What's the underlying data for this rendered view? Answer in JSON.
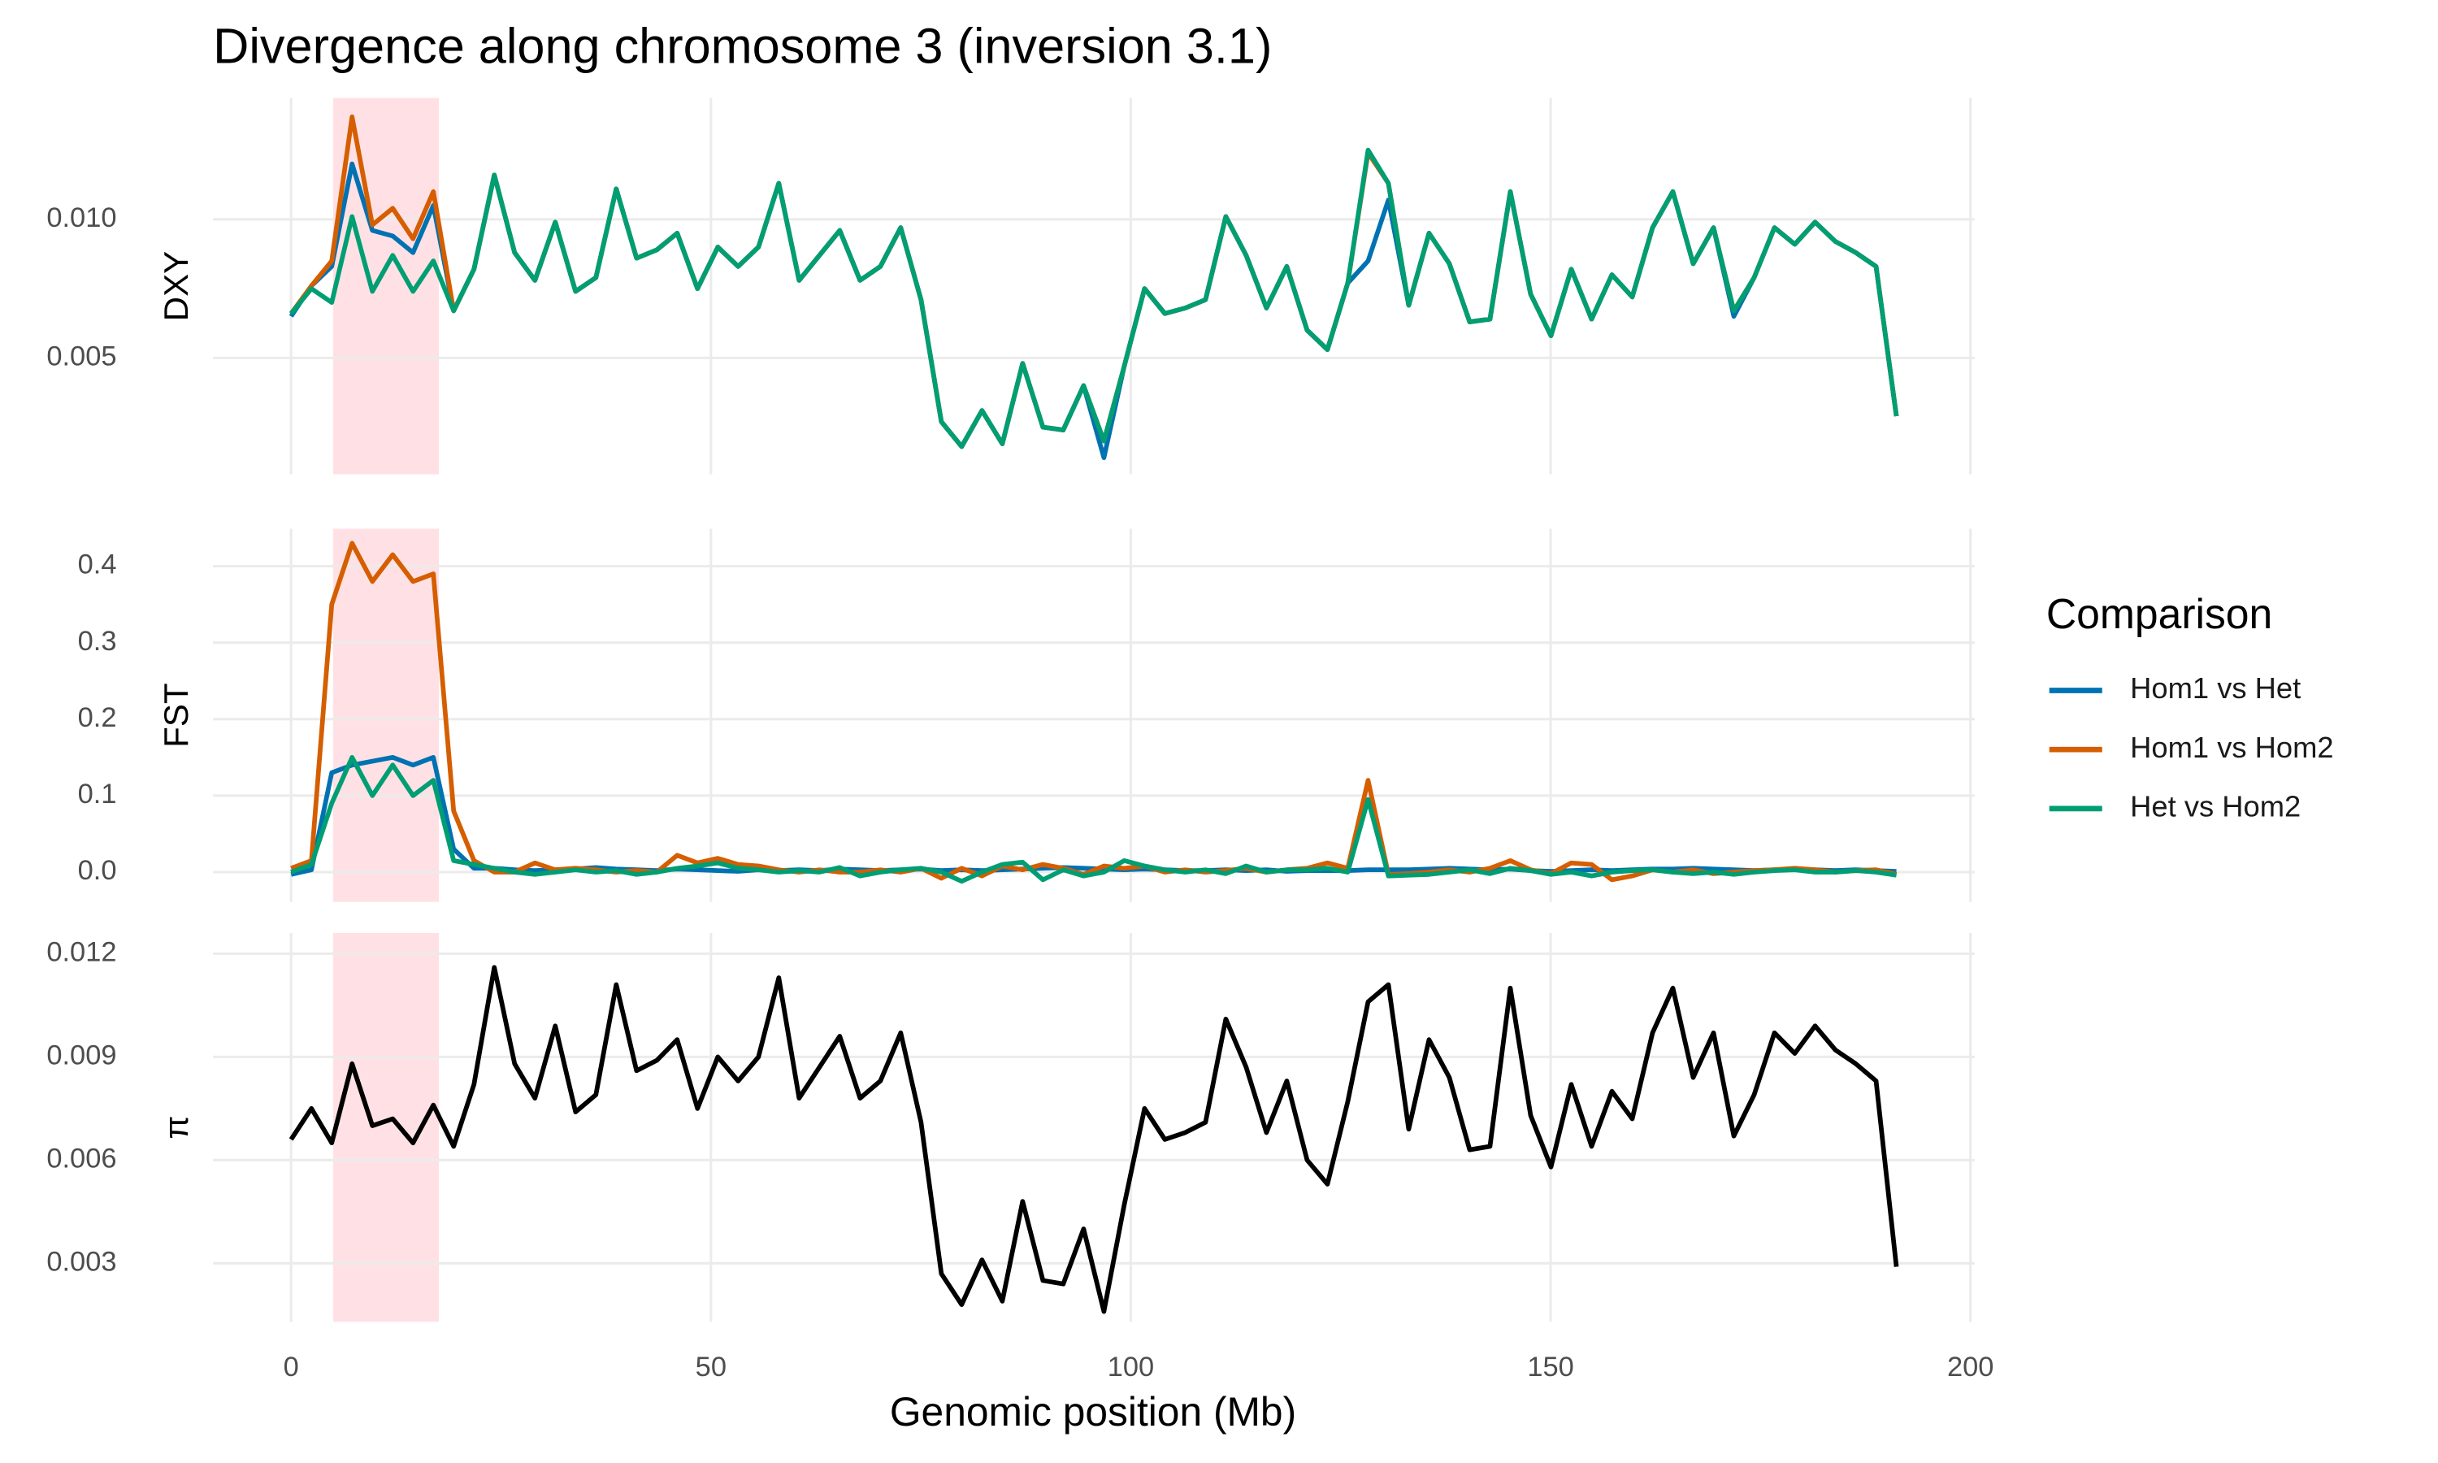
{
  "chart_data": {
    "type": "line",
    "title": "Divergence along chromosome 3 (inversion 3.1)",
    "xlabel": "Genomic position (Mb)",
    "legend_title": "Comparison",
    "legend_position": "right",
    "grid": true,
    "shade": {
      "xmin": 5,
      "xmax": 17.6,
      "color": "#ffe1e5"
    },
    "xlim": [
      -9.3,
      200.5
    ],
    "xticks": [
      0,
      50,
      100,
      150,
      200
    ],
    "x": [
      0,
      2.42,
      4.84,
      7.26,
      9.68,
      12.1,
      14.52,
      16.94,
      19.36,
      21.78,
      24.2,
      26.62,
      29.04,
      31.46,
      33.88,
      36.3,
      38.72,
      41.14,
      43.56,
      45.98,
      48.4,
      50.82,
      53.24,
      55.66,
      58.08,
      60.5,
      62.92,
      65.34,
      67.76,
      70.18,
      72.6,
      75.02,
      77.44,
      79.86,
      82.28,
      84.7,
      87.12,
      89.54,
      91.96,
      94.38,
      96.8,
      99.22,
      101.64,
      104.06,
      106.48,
      108.9,
      111.32,
      113.74,
      116.16,
      118.58,
      121,
      123.42,
      125.84,
      128.26,
      130.68,
      133.1,
      135.52,
      137.94,
      140.36,
      142.78,
      145.2,
      147.62,
      150.04,
      152.46,
      154.88,
      157.3,
      159.72,
      162.14,
      164.56,
      166.98,
      169.4,
      171.82,
      174.24,
      176.66,
      179.08,
      181.5,
      183.92,
      186.34,
      188.76,
      191.18
    ],
    "panels": [
      {
        "ylabel": "DXY",
        "ylim": [
          0.0008,
          0.01438
        ],
        "yticks": [
          0.005,
          {
            "value": 0.01,
            "label": "0.010"
          }
        ],
        "series": [
          {
            "name": "Hom1 vs Het",
            "color": "#0072B2",
            "values": [
              0.0065,
              0.0076,
              0.0083,
              0.012,
              0.0096,
              0.0094,
              0.0088,
              0.0105,
              0.0067,
              0.0082,
              0.0116,
              0.0088,
              0.0078,
              0.0099,
              0.0074,
              0.0079,
              0.0111,
              0.0086,
              0.0089,
              0.0095,
              0.0075,
              0.009,
              0.0083,
              0.009,
              0.0113,
              0.0078,
              0.0087,
              0.0096,
              0.0078,
              0.0083,
              0.0097,
              0.0071,
              0.0027,
              0.0018,
              0.0031,
              0.0019,
              0.0048,
              0.0025,
              0.0024,
              0.004,
              0.0014,
              0.0047,
              0.0075,
              0.0066,
              0.0068,
              0.0071,
              0.0101,
              0.0087,
              0.0068,
              0.0083,
              0.006,
              0.0053,
              0.0077,
              0.0085,
              0.0107,
              0.0069,
              0.0095,
              0.0084,
              0.0063,
              0.0064,
              0.011,
              0.0073,
              0.0058,
              0.0082,
              0.0064,
              0.008,
              0.0072,
              0.0097,
              0.011,
              0.0084,
              0.0097,
              0.0065,
              0.0079,
              0.0097,
              0.0091,
              0.0099,
              0.0092,
              0.0088,
              0.0083,
              0.0029
            ]
          },
          {
            "name": "Hom1 vs Hom2",
            "color": "#D55E00",
            "values": [
              0.0066,
              0.0076,
              0.0085,
              0.0137,
              0.0098,
              0.0104,
              0.0093,
              0.011,
              0.0067,
              0.0082,
              0.0116,
              0.0088,
              0.0078,
              0.0099,
              0.0074,
              0.0079,
              0.0111,
              0.0086,
              0.0089,
              0.0095,
              0.0075,
              0.009,
              0.0083,
              0.009,
              0.0113,
              0.0078,
              0.0087,
              0.0096,
              0.0078,
              0.0083,
              0.0097,
              0.0071,
              0.0027,
              0.0018,
              0.0031,
              0.0019,
              0.0048,
              0.0025,
              0.0024,
              0.004,
              0.002,
              0.0047,
              0.0075,
              0.0066,
              0.0068,
              0.0071,
              0.0101,
              0.0087,
              0.0068,
              0.0083,
              0.006,
              0.0053,
              0.0077,
              0.0124,
              0.0113,
              0.0069,
              0.0095,
              0.0084,
              0.0063,
              0.0064,
              0.011,
              0.0073,
              0.0058,
              0.0082,
              0.0064,
              0.008,
              0.0072,
              0.0097,
              0.011,
              0.0084,
              0.0097,
              0.0067,
              0.0079,
              0.0097,
              0.0091,
              0.0099,
              0.0092,
              0.0088,
              0.0083,
              0.0029
            ]
          },
          {
            "name": "Het vs Hom2",
            "color": "#009E73",
            "values": [
              0.0066,
              0.0075,
              0.007,
              0.0101,
              0.0074,
              0.0087,
              0.0074,
              0.0085,
              0.0067,
              0.0082,
              0.0116,
              0.0088,
              0.0078,
              0.0099,
              0.0074,
              0.0079,
              0.0111,
              0.0086,
              0.0089,
              0.0095,
              0.0075,
              0.009,
              0.0083,
              0.009,
              0.0113,
              0.0078,
              0.0087,
              0.0096,
              0.0078,
              0.0083,
              0.0097,
              0.0071,
              0.0027,
              0.0018,
              0.0031,
              0.0019,
              0.0048,
              0.0025,
              0.0024,
              0.004,
              0.002,
              0.0047,
              0.0075,
              0.0066,
              0.0068,
              0.0071,
              0.0101,
              0.0087,
              0.0068,
              0.0083,
              0.006,
              0.0053,
              0.0077,
              0.0125,
              0.0113,
              0.0069,
              0.0095,
              0.0084,
              0.0063,
              0.0064,
              0.011,
              0.0073,
              0.0058,
              0.0082,
              0.0064,
              0.008,
              0.0072,
              0.0097,
              0.011,
              0.0084,
              0.0097,
              0.0067,
              0.0079,
              0.0097,
              0.0091,
              0.0099,
              0.0092,
              0.0088,
              0.0083,
              0.0029
            ]
          }
        ]
      },
      {
        "ylabel": "FST",
        "ylim": [
          -0.039,
          0.449
        ],
        "yticks": [
          {
            "value": 0,
            "label": "0.0"
          },
          0.1,
          0.2,
          0.3,
          0.4
        ],
        "series": [
          {
            "name": "Hom1 vs Het",
            "color": "#0072B2",
            "values": [
              -0.003,
              0.003,
              0.13,
              0.14,
              0.145,
              0.15,
              0.14,
              0.15,
              0.03,
              0.005,
              0.005,
              0.003,
              0.002,
              0.003,
              0.004,
              0.006,
              0.004,
              0.003,
              0.002,
              0.004,
              0.003,
              0.002,
              0.001,
              0.003,
              0.002,
              0.003,
              0.002,
              0.004,
              0.003,
              0.002,
              0.003,
              0.004,
              0.002,
              0.003,
              0.002,
              0.003,
              0.004,
              0.005,
              0.006,
              0.005,
              0.004,
              0.003,
              0.004,
              0.003,
              0.002,
              0.002,
              0.003,
              0.002,
              0.003,
              0.001,
              0.002,
              0.002,
              0.002,
              0.003,
              0.003,
              0.003,
              0.004,
              0.005,
              0.004,
              0.003,
              0.004,
              0.002,
              0.001,
              0.002,
              0.003,
              0.002,
              0.003,
              0.004,
              0.004,
              0.005,
              0.004,
              0.003,
              0.002,
              0.003,
              0.004,
              0.003,
              0.002,
              0.003,
              0.002,
              0.001
            ]
          },
          {
            "name": "Hom1 vs Hom2",
            "color": "#D55E00",
            "values": [
              0.005,
              0.015,
              0.35,
              0.43,
              0.38,
              0.415,
              0.38,
              0.39,
              0.08,
              0.015,
              0.0,
              0.0,
              0.012,
              0.003,
              0.005,
              0.003,
              0.0,
              0.002,
              0.0,
              0.022,
              0.012,
              0.018,
              0.01,
              0.008,
              0.003,
              0.0,
              0.003,
              0.0,
              0.0,
              0.003,
              0.0,
              0.005,
              -0.008,
              0.005,
              -0.005,
              0.008,
              0.003,
              0.01,
              0.005,
              -0.003,
              0.008,
              0.005,
              0.008,
              0.0,
              0.003,
              0.0,
              0.002,
              0.005,
              0.0,
              0.003,
              0.005,
              0.012,
              0.005,
              0.12,
              -0.003,
              -0.002,
              0.0,
              0.003,
              0.0,
              0.005,
              0.015,
              0.003,
              -0.002,
              0.012,
              0.01,
              -0.01,
              -0.005,
              0.003,
              0.0,
              0.003,
              -0.002,
              0.0,
              0.002,
              0.003,
              0.005,
              0.003,
              0.0,
              0.002,
              0.003,
              -0.003
            ]
          },
          {
            "name": "Het vs Hom2",
            "color": "#009E73",
            "values": [
              0.0,
              0.01,
              0.09,
              0.15,
              0.1,
              0.14,
              0.1,
              0.12,
              0.015,
              0.01,
              0.005,
              0.0,
              -0.003,
              0.0,
              0.003,
              0.0,
              0.002,
              -0.003,
              0.0,
              0.005,
              0.008,
              0.012,
              0.005,
              0.003,
              0.0,
              0.002,
              0.0,
              0.006,
              -0.005,
              0.0,
              0.003,
              0.005,
              0.0,
              -0.012,
              0.0,
              0.01,
              0.013,
              -0.01,
              0.003,
              -0.005,
              0.0,
              0.015,
              0.008,
              0.003,
              0.0,
              0.003,
              -0.002,
              0.008,
              0.0,
              0.003,
              0.003,
              0.005,
              0.0,
              0.095,
              -0.005,
              -0.004,
              -0.003,
              0.0,
              0.003,
              -0.002,
              0.005,
              0.002,
              -0.003,
              0.0,
              -0.005,
              0.0,
              0.002,
              0.003,
              0.0,
              -0.002,
              0.0,
              -0.003,
              0.0,
              0.002,
              0.003,
              0.0,
              0.0,
              0.002,
              0.0,
              -0.004
            ]
          }
        ]
      },
      {
        "ylabel": "π",
        "ylim": [
          0.0013,
          0.0126
        ],
        "yticks": [
          0.003,
          0.006,
          0.009,
          0.012
        ],
        "series": [
          {
            "color": "#000000",
            "values": [
              0.0066,
              0.0075,
              0.0065,
              0.0088,
              0.007,
              0.0072,
              0.0065,
              0.0076,
              0.0064,
              0.0082,
              0.0116,
              0.0088,
              0.0078,
              0.0099,
              0.0074,
              0.0079,
              0.0111,
              0.0086,
              0.0089,
              0.0095,
              0.0075,
              0.009,
              0.0083,
              0.009,
              0.0113,
              0.0078,
              0.0087,
              0.0096,
              0.0078,
              0.0083,
              0.0097,
              0.0071,
              0.0027,
              0.0018,
              0.0031,
              0.0019,
              0.0048,
              0.0025,
              0.0024,
              0.004,
              0.0016,
              0.0047,
              0.0075,
              0.0066,
              0.0068,
              0.0071,
              0.0101,
              0.0087,
              0.0068,
              0.0083,
              0.006,
              0.0053,
              0.0077,
              0.0106,
              0.0111,
              0.0069,
              0.0095,
              0.0084,
              0.0063,
              0.0064,
              0.011,
              0.0073,
              0.0058,
              0.0082,
              0.0064,
              0.008,
              0.0072,
              0.0097,
              0.011,
              0.0084,
              0.0097,
              0.0067,
              0.0079,
              0.0097,
              0.0091,
              0.0099,
              0.0092,
              0.0088,
              0.0083,
              0.0029
            ]
          }
        ]
      }
    ]
  }
}
